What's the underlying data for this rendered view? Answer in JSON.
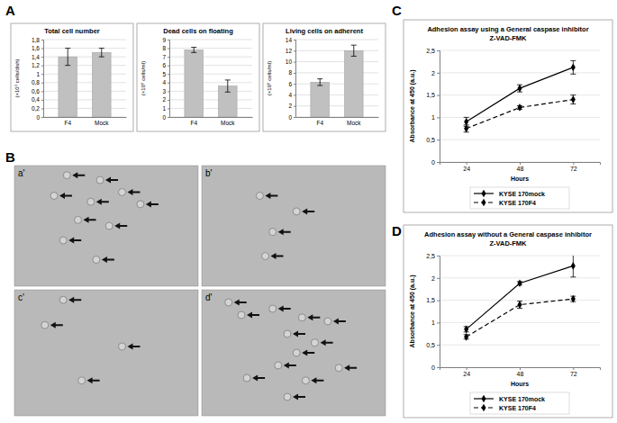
{
  "panel_labels": [
    "A",
    "B",
    "C",
    "D"
  ],
  "images": [
    "a'",
    "b'",
    "c'",
    "d'"
  ],
  "chart_data": [
    {
      "type": "bar",
      "title": "Total cell number",
      "y_label": "(×10⁵ cells/dish)",
      "categories": [
        "F4",
        "Mock"
      ],
      "values": [
        1.4,
        1.5
      ],
      "errors": [
        0.2,
        0.1
      ],
      "color": "#c0c0c0",
      "ylim": [
        0,
        1.8
      ],
      "yticks": [
        0,
        {
          "value": 0.2,
          "label": "0,2"
        },
        {
          "value": 0.4,
          "label": "0,4"
        },
        {
          "value": 0.6,
          "label": "0,6"
        },
        {
          "value": 0.8,
          "label": "0,8"
        },
        1,
        {
          "value": 1.2,
          "label": "1,2"
        },
        {
          "value": 1.4,
          "label": "1,4"
        },
        {
          "value": 1.6,
          "label": "1,6"
        },
        {
          "value": 1.8,
          "label": "1,8"
        }
      ],
      "grid": true
    },
    {
      "type": "bar",
      "title": "Dead cells on floating",
      "y_label": "(×10⁵ cells/ml)",
      "categories": [
        "F4",
        "Mock"
      ],
      "values": [
        7.8,
        3.6
      ],
      "errors": [
        0.3,
        0.7
      ],
      "color": "#c0c0c0",
      "ylim": [
        0,
        9
      ],
      "yticks": [
        0,
        1,
        2,
        3,
        4,
        5,
        6,
        7,
        8,
        9
      ],
      "grid": true
    },
    {
      "type": "bar",
      "title": "Living cells on adherent",
      "y_label": "(×10⁵ cells/ml)",
      "categories": [
        "F4",
        "Mock"
      ],
      "values": [
        6.3,
        12.0
      ],
      "errors": [
        0.6,
        1.0
      ],
      "color": "#c0c0c0",
      "ylim": [
        0,
        14
      ],
      "yticks": [
        0,
        2,
        4,
        6,
        8,
        10,
        12,
        14
      ],
      "grid": true
    },
    {
      "type": "line",
      "title": "Adhesion assay using a General caspase inhibitor",
      "subtitle": "Z-VAD-FMK",
      "x_label": "Hours",
      "y_label": "Absorbance at 450 (a.u.)",
      "categories": [
        "24",
        "48",
        "72"
      ],
      "series": [
        {
          "name": "KYSE 170mock",
          "color": "#000000",
          "marker": "diamond",
          "line_style": "solid",
          "values": [
            0.9,
            1.65,
            2.12
          ],
          "errors": [
            0.1,
            0.08,
            0.15
          ]
        },
        {
          "name": "KYSE 170F4",
          "color": "#000000",
          "marker": "diamond",
          "line_style": "dashed",
          "values": [
            0.75,
            1.22,
            1.4
          ],
          "errors": [
            0.08,
            0.04,
            0.1
          ]
        }
      ],
      "ylim": [
        0,
        2.5
      ],
      "yticks": [
        0,
        {
          "value": 0.5,
          "label": "0,5"
        },
        1,
        {
          "value": 1.5,
          "label": "1,5"
        },
        2,
        {
          "value": 2.5,
          "label": "2,5"
        }
      ],
      "grid": true,
      "legend": "bottom"
    },
    {
      "type": "line",
      "title": "Adhesion assay without a General caspase inhibitor",
      "subtitle": "Z-VAD-FMK",
      "x_label": "Hours",
      "y_label": "Absorbance at 450 (a.u.)",
      "categories": [
        "24",
        "48",
        "72"
      ],
      "series": [
        {
          "name": "KYSE 170mock",
          "color": "#000000",
          "marker": "diamond",
          "line_style": "solid",
          "values": [
            0.85,
            1.88,
            2.27
          ],
          "errors": [
            0.06,
            0.04,
            0.25
          ]
        },
        {
          "name": "KYSE 170F4",
          "color": "#000000",
          "marker": "diamond",
          "line_style": "dashed",
          "values": [
            0.68,
            1.4,
            1.53
          ],
          "errors": [
            0.05,
            0.08,
            0.06
          ]
        }
      ],
      "ylim": [
        0,
        2.5
      ],
      "yticks": [
        0,
        {
          "value": 0.5,
          "label": "0,5"
        },
        1,
        {
          "value": 1.5,
          "label": "1,5"
        },
        2,
        {
          "value": 2.5,
          "label": "2,5"
        }
      ],
      "grid": true,
      "legend": "bottom"
    }
  ]
}
